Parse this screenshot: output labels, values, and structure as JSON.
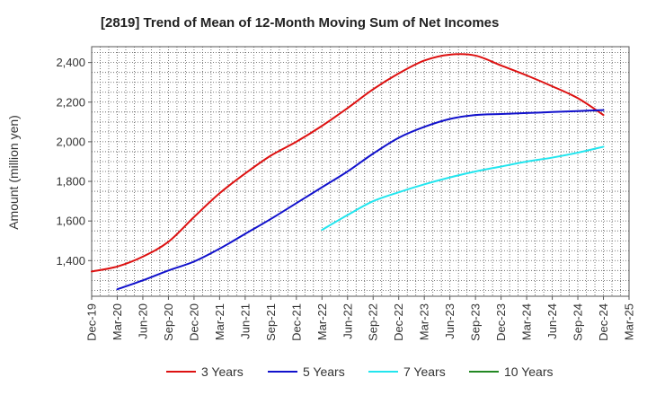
{
  "chart_data": {
    "type": "line",
    "title": "[2819]  Trend of Mean of 12-Month Moving Sum of Net Incomes",
    "xlabel": "",
    "ylabel": "Amount (million yen)",
    "ylim": [
      1220,
      2480
    ],
    "y_ticks": [
      1400,
      1600,
      1800,
      2000,
      2200,
      2400
    ],
    "y_tick_labels": [
      "1,400",
      "1,600",
      "1,800",
      "2,000",
      "2,200",
      "2,400"
    ],
    "x_tick_labels": [
      "Dec-19",
      "Mar-20",
      "Jun-20",
      "Sep-20",
      "Dec-20",
      "Mar-21",
      "Jun-21",
      "Sep-21",
      "Dec-21",
      "Mar-22",
      "Jun-22",
      "Sep-22",
      "Dec-22",
      "Mar-23",
      "Jun-23",
      "Sep-23",
      "Dec-23",
      "Mar-24",
      "Jun-24",
      "Sep-24",
      "Dec-24",
      "Mar-25"
    ],
    "grid": true,
    "legend_position": "bottom",
    "series": [
      {
        "name": "3 Years",
        "color": "#dd1111",
        "points": [
          [
            "Dec-19",
            1345
          ],
          [
            "Mar-20",
            1370
          ],
          [
            "Jun-20",
            1420
          ],
          [
            "Sep-20",
            1495
          ],
          [
            "Dec-20",
            1620
          ],
          [
            "Mar-21",
            1740
          ],
          [
            "Jun-21",
            1840
          ],
          [
            "Sep-21",
            1930
          ],
          [
            "Dec-21",
            2000
          ],
          [
            "Mar-22",
            2080
          ],
          [
            "Jun-22",
            2170
          ],
          [
            "Sep-22",
            2265
          ],
          [
            "Dec-22",
            2345
          ],
          [
            "Mar-23",
            2410
          ],
          [
            "Jun-23",
            2440
          ],
          [
            "Sep-23",
            2435
          ],
          [
            "Dec-23",
            2385
          ],
          [
            "Mar-24",
            2335
          ],
          [
            "Jun-24",
            2280
          ],
          [
            "Sep-24",
            2220
          ],
          [
            "Dec-24",
            2135
          ]
        ]
      },
      {
        "name": "5 Years",
        "color": "#1111cc",
        "points": [
          [
            "Mar-20",
            1255
          ],
          [
            "Jun-20",
            1300
          ],
          [
            "Sep-20",
            1350
          ],
          [
            "Dec-20",
            1395
          ],
          [
            "Mar-21",
            1460
          ],
          [
            "Jun-21",
            1535
          ],
          [
            "Sep-21",
            1610
          ],
          [
            "Dec-21",
            1690
          ],
          [
            "Mar-22",
            1770
          ],
          [
            "Jun-22",
            1850
          ],
          [
            "Sep-22",
            1940
          ],
          [
            "Dec-22",
            2020
          ],
          [
            "Mar-23",
            2075
          ],
          [
            "Jun-23",
            2115
          ],
          [
            "Sep-23",
            2135
          ],
          [
            "Dec-23",
            2140
          ],
          [
            "Mar-24",
            2145
          ],
          [
            "Jun-24",
            2150
          ],
          [
            "Sep-24",
            2155
          ],
          [
            "Dec-24",
            2160
          ]
        ]
      },
      {
        "name": "7 Years",
        "color": "#22e5ee",
        "points": [
          [
            "Mar-22",
            1555
          ],
          [
            "Jun-22",
            1630
          ],
          [
            "Sep-22",
            1700
          ],
          [
            "Dec-22",
            1745
          ],
          [
            "Mar-23",
            1785
          ],
          [
            "Jun-23",
            1820
          ],
          [
            "Sep-23",
            1850
          ],
          [
            "Dec-23",
            1875
          ],
          [
            "Mar-24",
            1900
          ],
          [
            "Jun-24",
            1920
          ],
          [
            "Sep-24",
            1945
          ],
          [
            "Dec-24",
            1975
          ]
        ]
      },
      {
        "name": "10 Years",
        "color": "#228822",
        "points": []
      }
    ]
  }
}
